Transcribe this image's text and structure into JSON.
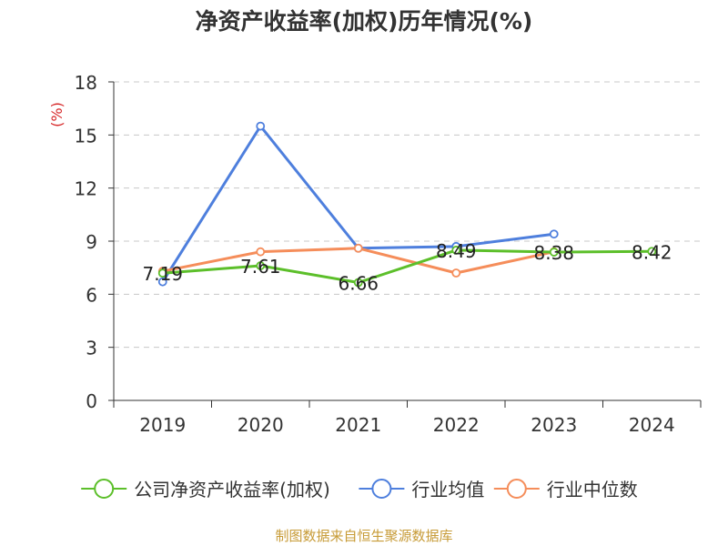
{
  "chart_data": {
    "type": "line",
    "title": "净资产收益率(加权)历年情况(%)",
    "ylabel": "(%)",
    "xlabel": "",
    "categories": [
      "2019",
      "2020",
      "2021",
      "2022",
      "2023",
      "2024"
    ],
    "ylim": [
      0,
      18
    ],
    "yticks": [
      0,
      3,
      6,
      9,
      12,
      15,
      18
    ],
    "grid": true,
    "legend_position": "bottom",
    "series": [
      {
        "name": "公司净资产收益率(加权)",
        "color": "#5cbf2a",
        "values": [
          7.19,
          7.61,
          6.66,
          8.49,
          8.38,
          8.42
        ],
        "labels": [
          "7.19",
          "7.61",
          "6.66",
          "8.49",
          "8.38",
          "8.42"
        ]
      },
      {
        "name": "行业均值",
        "color": "#4e7fdd",
        "values": [
          6.7,
          15.5,
          8.6,
          8.7,
          9.4,
          null
        ]
      },
      {
        "name": "行业中位数",
        "color": "#f58d5a",
        "values": [
          7.3,
          8.4,
          8.6,
          7.2,
          8.4,
          null
        ]
      }
    ]
  },
  "footer": {
    "source": "制图数据来自恒生聚源数据库"
  }
}
